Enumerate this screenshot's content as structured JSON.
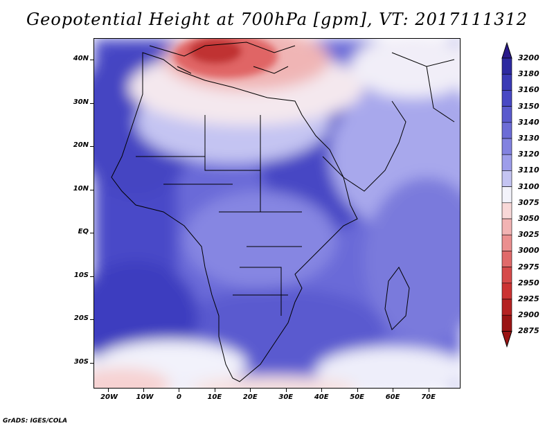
{
  "title": "Geopotential Height at 700hPa [gpm], VT: 2017111312",
  "credit": "GrADS: IGES/COLA",
  "map": {
    "region": "Africa",
    "projection": "latlon",
    "lon_range": [
      -24,
      79
    ],
    "lat_range": [
      -36,
      45
    ],
    "lat_labels": [
      "40N",
      "30N",
      "20N",
      "10N",
      "EQ",
      "10S",
      "20S",
      "30S"
    ],
    "lat_values": [
      40,
      30,
      20,
      10,
      0,
      -10,
      -20,
      -30
    ],
    "lon_labels": [
      "20W",
      "10W",
      "0",
      "10E",
      "20E",
      "30E",
      "40E",
      "50E",
      "60E",
      "70E"
    ],
    "lon_values": [
      -20,
      -10,
      0,
      10,
      20,
      30,
      40,
      50,
      60,
      70
    ]
  },
  "colorbar": {
    "levels": [
      "3200",
      "3180",
      "3160",
      "3150",
      "3140",
      "3130",
      "3120",
      "3110",
      "3100",
      "3075",
      "3050",
      "3025",
      "3000",
      "2975",
      "2950",
      "2925",
      "2900",
      "2875"
    ],
    "colors": [
      "#2a1a8a",
      "#2d2aa0",
      "#3a3ab5",
      "#4848c4",
      "#5a5acd",
      "#6c6cd6",
      "#8282e0",
      "#9d9dea",
      "#c4c4f2",
      "#f3f3fb",
      "#f8d8d8",
      "#f2b3b3",
      "#eb8f8f",
      "#e06a6a",
      "#d64a4a",
      "#cc3333",
      "#b52222",
      "#9a1414"
    ]
  }
}
